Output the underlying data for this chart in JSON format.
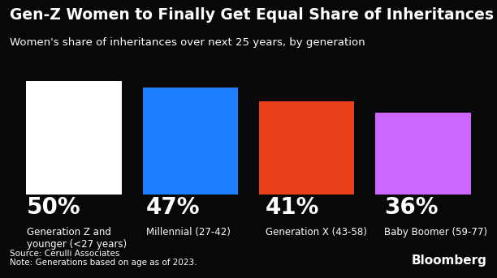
{
  "title": "Gen-Z Women to Finally Get Equal Share of Inheritances",
  "subtitle": "Women's share of inheritances over next 25 years, by generation",
  "categories": [
    "Generation Z and\nyounger (<27 years)",
    "Millennial (27-42)",
    "Generation X (43-58)",
    "Baby Boomer (59-77)"
  ],
  "percentages": [
    50,
    47,
    41,
    36
  ],
  "pct_labels": [
    "50%",
    "47%",
    "41%",
    "36%"
  ],
  "bar_colors": [
    "#ffffff",
    "#1e7fff",
    "#e8401a",
    "#cc66ff"
  ],
  "background_color": "#080808",
  "text_color": "#ffffff",
  "source_text": "Source: Cerulli Associates\nNote: Generations based on age as of 2023.",
  "bloomberg_text": "Bloomberg",
  "title_fontsize": 13.5,
  "subtitle_fontsize": 9.5,
  "pct_fontsize": 20,
  "label_fontsize": 8.5,
  "source_fontsize": 7.5,
  "bloomberg_fontsize": 11
}
